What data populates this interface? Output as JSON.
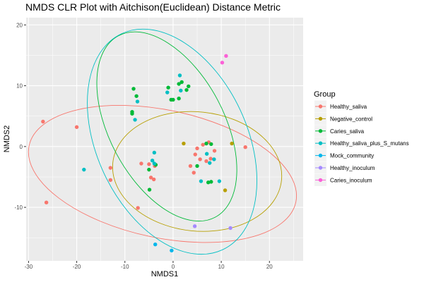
{
  "chart_data": {
    "type": "scatter",
    "title": "NMDS CLR Plot with Aitchison(Euclidean) Distance Metric",
    "xlabel": "NMDS1",
    "ylabel": "NMDS2",
    "xlim": [
      -30.5,
      27
    ],
    "ylim": [
      -18.8,
      21.2
    ],
    "x_ticks": [
      -30,
      -20,
      -10,
      0,
      10,
      20
    ],
    "y_ticks": [
      -10,
      0,
      10,
      20
    ],
    "grid": true,
    "panel_background": "#ebebeb",
    "legend": {
      "title": "Group",
      "position": "right"
    },
    "series": [
      {
        "name": "Healthy_saliva",
        "color": "#f8766d",
        "points": [
          [
            -27,
            4.1
          ],
          [
            -26.3,
            -9.2
          ],
          [
            -20,
            3.2
          ],
          [
            -13,
            -3.5
          ],
          [
            -13,
            -5.5
          ],
          [
            -7.3,
            -10.1
          ],
          [
            -6.6,
            -2.8
          ],
          [
            -5,
            -2.9
          ],
          [
            -4.6,
            -5.1
          ],
          [
            -4,
            -5.4
          ],
          [
            -3.8,
            -3.2
          ],
          [
            3.6,
            -3.2
          ],
          [
            4.3,
            -4.3
          ],
          [
            4.6,
            -1.3
          ],
          [
            5,
            -0.3
          ],
          [
            5.6,
            -2.1
          ],
          [
            6.2,
            0.3
          ],
          [
            6.9,
            -2.4
          ],
          [
            7.4,
            0.7
          ],
          [
            7.8,
            -2.0
          ],
          [
            8.6,
            -0.7
          ],
          [
            15,
            -0.1
          ]
        ]
      },
      {
        "name": "Negative_control",
        "color": "#b79f00",
        "points": [
          [
            2.2,
            0.5
          ],
          [
            10.8,
            -7.2
          ],
          [
            12.2,
            0.5
          ]
        ]
      },
      {
        "name": "Caries_saliva",
        "color": "#00ba38",
        "points": [
          [
            -8.2,
            9.5
          ],
          [
            -7.6,
            8.3
          ],
          [
            -8.5,
            5.7
          ],
          [
            -8.5,
            5.4
          ],
          [
            -5,
            -3.8
          ],
          [
            -4.9,
            -7.1
          ],
          [
            -3.6,
            -3.0
          ],
          [
            -1,
            9.7
          ],
          [
            -0.4,
            7.7
          ],
          [
            0,
            7.7
          ],
          [
            1.2,
            10.3
          ],
          [
            1.2,
            7.9
          ],
          [
            1.8,
            10.6
          ],
          [
            3.2,
            9.9
          ],
          [
            2.8,
            9.3
          ],
          [
            5,
            -3.2
          ],
          [
            6.9,
            0.5
          ],
          [
            7.3,
            -5.9
          ],
          [
            7.9,
            -5.8
          ],
          [
            7.9,
            0.4
          ]
        ]
      },
      {
        "name": "Healthy_saliva_plus_S_mutans",
        "color": "#00bfc4",
        "points": [
          [
            -18.5,
            -3.8
          ],
          [
            -7.9,
            4.4
          ],
          [
            -7.4,
            7.4
          ],
          [
            -3.9,
            -1.0
          ],
          [
            -4.3,
            -2.3
          ],
          [
            -3.9,
            -2.8
          ],
          [
            -1.2,
            8.9
          ],
          [
            1.4,
            11.7
          ],
          [
            1.6,
            9.2
          ],
          [
            5.8,
            -5.7
          ],
          [
            7.0,
            -1.2
          ],
          [
            7.6,
            -2.7
          ],
          [
            8.5,
            -2.1
          ],
          [
            9.6,
            -5.7
          ]
        ]
      },
      {
        "name": "Mock_community",
        "color": "#00b6eb",
        "points": [
          [
            -3.7,
            -16.1
          ],
          [
            -0.3,
            -17.1
          ]
        ]
      },
      {
        "name": "Healthy_inoculum",
        "color": "#a58aff",
        "points": [
          [
            4.5,
            -13.1
          ],
          [
            11.9,
            -13.4
          ]
        ]
      },
      {
        "name": "Caries_inoculum",
        "color": "#fb61d7",
        "points": [
          [
            10.2,
            13.8
          ],
          [
            11,
            14.9
          ]
        ]
      }
    ],
    "ellipses": [
      {
        "series": "Healthy_saliva",
        "color": "#f8766d",
        "cx": -2.2,
        "cy": -4.5,
        "rx": 28.3,
        "ry": 10.5,
        "angle": 12
      },
      {
        "series": "Negative_control",
        "color": "#b79f00",
        "cx": 5,
        "cy": -4.1,
        "rx": 17.6,
        "ry": 9.8,
        "angle": 6
      },
      {
        "series": "Caries_saliva",
        "color": "#00ba38",
        "cx": -1.3,
        "cy": 3.3,
        "rx": 11.9,
        "ry": 16.9,
        "angle": -28
      },
      {
        "series": "Healthy_saliva_plus_S_mutans",
        "color": "#00bfc4",
        "cx": -0.2,
        "cy": 0.8,
        "rx": 15.6,
        "ry": 19.6,
        "angle": -25
      }
    ]
  }
}
